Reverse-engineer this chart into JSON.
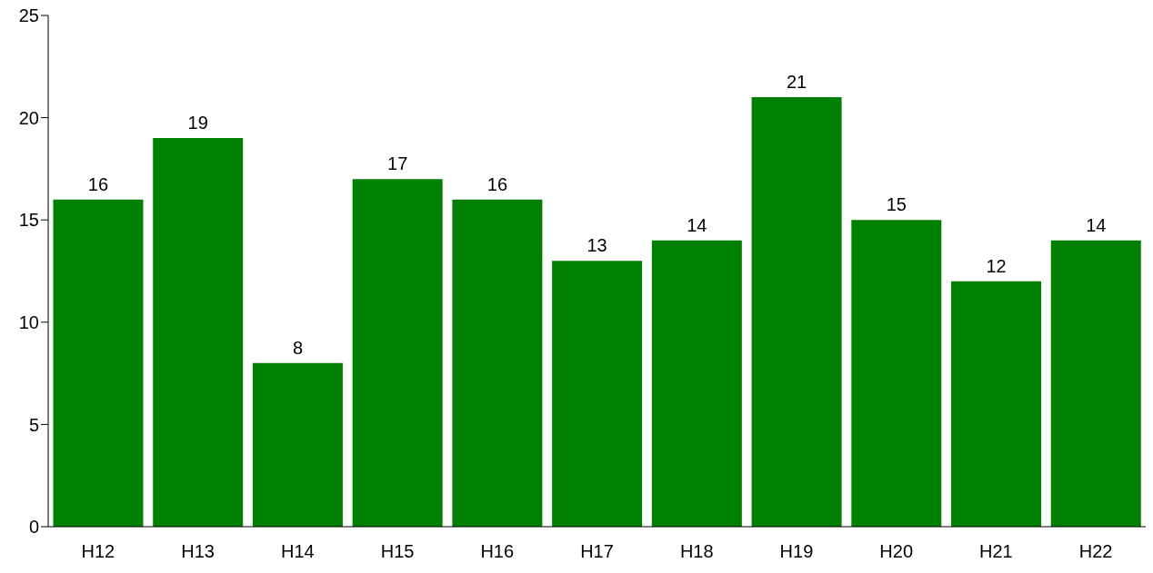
{
  "chart_data": {
    "type": "bar",
    "categories": [
      "H12",
      "H13",
      "H14",
      "H15",
      "H16",
      "H17",
      "H18",
      "H19",
      "H20",
      "H21",
      "H22"
    ],
    "values": [
      16,
      19,
      8,
      17,
      16,
      13,
      14,
      21,
      15,
      12,
      14
    ],
    "color": "#008000",
    "ylim": [
      0,
      25
    ],
    "yticks": [
      0,
      5,
      10,
      15,
      20,
      25
    ],
    "data_labels": true,
    "grid": false
  }
}
